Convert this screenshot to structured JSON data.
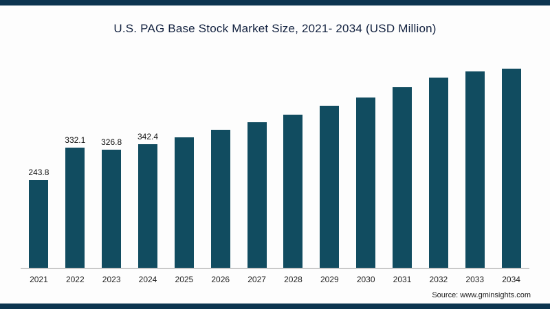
{
  "chart_data": {
    "type": "bar",
    "title": "U.S. PAG Base Stock Market Size, 2021- 2034 (USD Million)",
    "categories": [
      "2021",
      "2022",
      "2023",
      "2024",
      "2025",
      "2026",
      "2027",
      "2028",
      "2029",
      "2030",
      "2031",
      "2032",
      "2033",
      "2034"
    ],
    "values": [
      243.8,
      332.1,
      326.8,
      342.4,
      361,
      382,
      403,
      424,
      449,
      472,
      500,
      527,
      544,
      552
    ],
    "data_labels": [
      "243.8",
      "332.1",
      "326.8",
      "342.4",
      "",
      "",
      "",
      "",
      "",
      "",
      "",
      "",
      "",
      ""
    ],
    "xlabel": "",
    "ylabel": "",
    "ylim": [
      0,
      580
    ],
    "grid": false,
    "legend": false,
    "bar_color": "#114c60"
  },
  "colors": {
    "border": "#0d3550",
    "baseline": "#c9c9c9"
  },
  "source": {
    "label": "Source: www.gminsights.com"
  }
}
